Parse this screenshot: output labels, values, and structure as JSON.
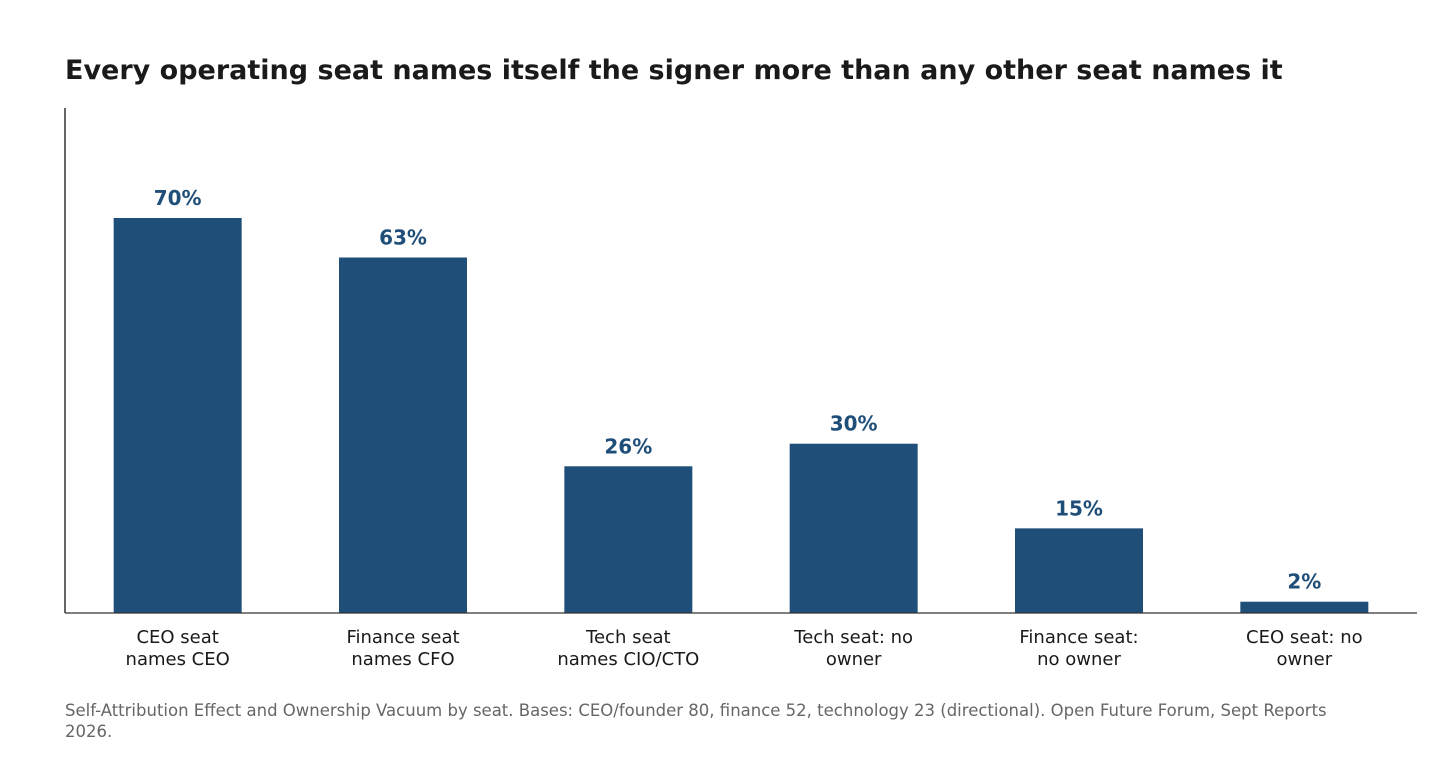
{
  "chart_data": {
    "type": "bar",
    "title": "Every operating seat names itself the signer more than any other seat names it",
    "categories": [
      [
        "CEO seat",
        "names CEO"
      ],
      [
        "Finance seat",
        "names CFO"
      ],
      [
        "Tech seat",
        "names CIO/CTO"
      ],
      [
        "Tech seat: no",
        "owner"
      ],
      [
        "Finance seat:",
        "no owner"
      ],
      [
        "CEO seat: no",
        "owner"
      ]
    ],
    "values": [
      70,
      63,
      26,
      30,
      15,
      2
    ],
    "value_labels": [
      "70%",
      "63%",
      "26%",
      "30%",
      "15%",
      "2%"
    ],
    "value_unit": "%",
    "ylim": [
      0,
      90
    ],
    "xlabel": "",
    "ylabel": "",
    "grid": false,
    "legend": "none",
    "colors": {
      "bar": "#1f4e79",
      "value_label": "#1f4e79",
      "axis": "#333333",
      "tick_label": "#1a1a1a"
    }
  },
  "note": "Self-Attribution Effect and Ownership Vacuum by seat. Bases: CEO/founder 80, finance 52, technology 23 (directional). Open Future Forum, Sept Reports 2026."
}
